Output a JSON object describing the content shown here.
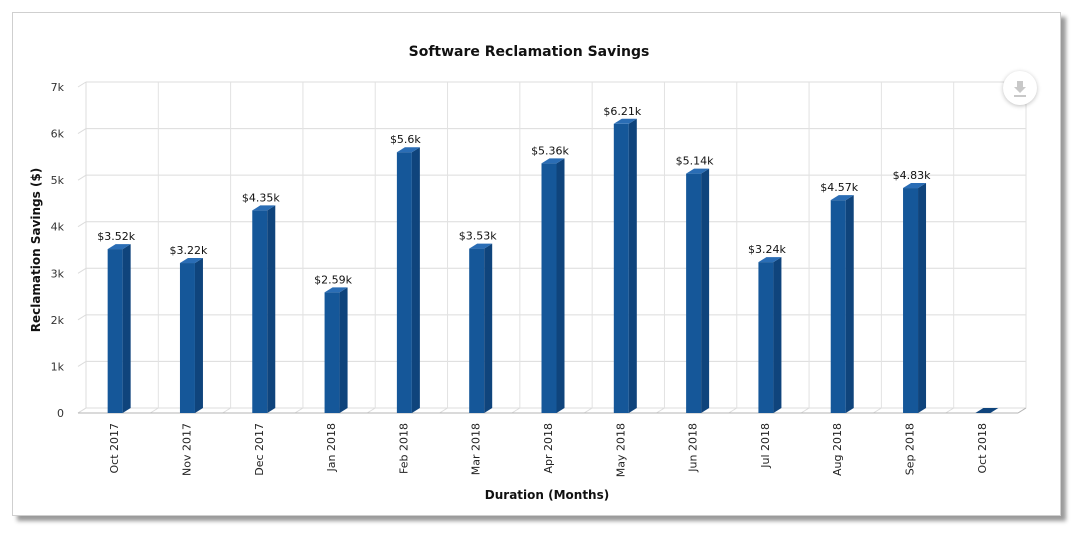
{
  "chart_data": {
    "type": "bar",
    "title": "Software Reclamation Savings",
    "xlabel": "Duration (Months)",
    "ylabel": "Reclamation Savings ($)",
    "ylim": [
      0,
      7000
    ],
    "yticks": [
      0,
      1000,
      2000,
      3000,
      4000,
      5000,
      6000,
      7000
    ],
    "ytick_labels": [
      "0",
      "1k",
      "2k",
      "3k",
      "4k",
      "5k",
      "6k",
      "7k"
    ],
    "categories": [
      "Oct 2017",
      "Nov 2017",
      "Dec 2017",
      "Jan 2018",
      "Feb 2018",
      "Mar 2018",
      "Apr 2018",
      "May 2018",
      "Jun 2018",
      "Jul 2018",
      "Aug 2018",
      "Sep 2018",
      "Oct 2018"
    ],
    "values": [
      3520,
      3220,
      4350,
      2590,
      5600,
      3530,
      5360,
      6210,
      5140,
      3240,
      4570,
      4830,
      0
    ],
    "data_labels": [
      "$3.52k",
      "$3.22k",
      "$4.35k",
      "$2.59k",
      "$5.6k",
      "$3.53k",
      "$5.36k",
      "$6.21k",
      "$5.14k",
      "$3.24k",
      "$4.57k",
      "$4.83k",
      ""
    ],
    "grid": true,
    "style": "3d-column",
    "colors": {
      "bar_front": "#155799",
      "bar_side": "#0f447c",
      "bar_top": "#2a6db5"
    }
  },
  "toolbar": {
    "download_icon": "download-icon"
  }
}
